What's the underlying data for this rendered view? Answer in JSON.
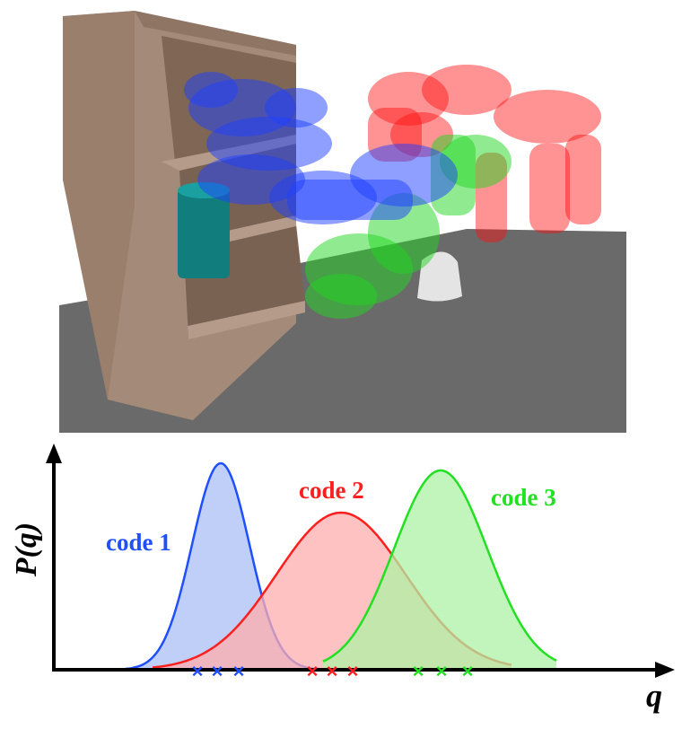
{
  "scene": {
    "robot_colors": {
      "code1": "#1d3fff",
      "code2": "#ff1010",
      "code3": "#22d622"
    },
    "shelf_color": "#a48a78",
    "object_color": "#0f7b7b",
    "floor_color": "#6a6a6a"
  },
  "plot": {
    "y_label": "P(q)",
    "x_label": "q",
    "curves": [
      {
        "label": "code 1",
        "color": "#1f4fff",
        "fill": "#a9bff5",
        "samples": 3
      },
      {
        "label": "code 2",
        "color": "#ff1f1f",
        "fill": "#ffadad",
        "samples": 3
      },
      {
        "label": "code 3",
        "color": "#22e022",
        "fill": "#aef2a4",
        "samples": 3
      }
    ]
  }
}
